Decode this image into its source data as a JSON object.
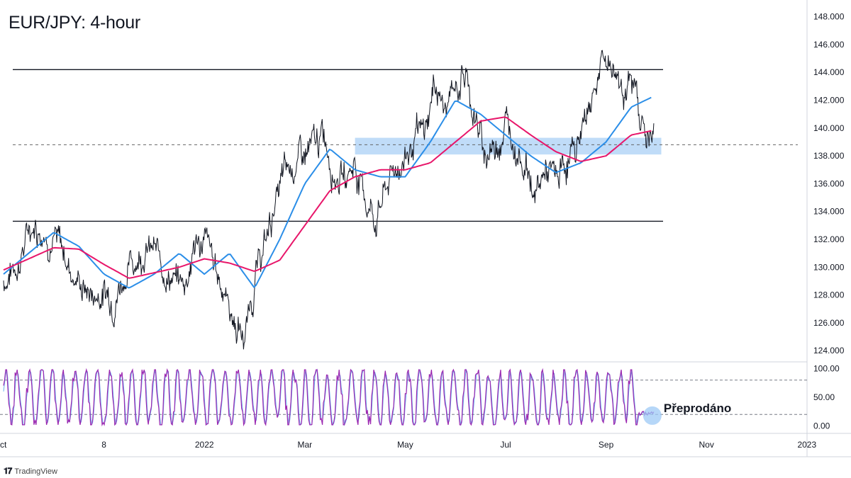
{
  "chart_data": [
    {
      "type": "line",
      "title": "EUR/JPY: 4-hour",
      "subtitle": "",
      "xlabel": "",
      "ylabel": "",
      "ylim": [
        123.5,
        149
      ],
      "y_ticks": [
        "148.000",
        "146.000",
        "144.000",
        "142.000",
        "140.000",
        "138.000",
        "136.000",
        "134.000",
        "132.000",
        "130.000",
        "128.000",
        "126.000",
        "124.000"
      ],
      "x_ticks": [
        "ct",
        "8",
        "2022",
        "Mar",
        "May",
        "Jul",
        "Sep",
        "Nov",
        "2023"
      ],
      "x_range": [
        0,
        16
      ],
      "x_tick_positions": [
        0,
        2,
        4,
        6,
        8,
        10,
        12,
        14,
        16
      ],
      "grid": false,
      "legend": "none",
      "series": [
        {
          "kind": "price",
          "color": "#131722",
          "x": [
            0,
            0.3,
            0.5,
            0.6,
            0.8,
            1.0,
            1.2,
            1.4,
            1.6,
            1.8,
            2.0,
            2.2,
            2.4,
            2.6,
            2.8,
            3.0,
            3.2,
            3.4,
            3.6,
            3.8,
            4.0,
            4.2,
            4.4,
            4.6,
            4.8,
            5.0,
            5.2,
            5.4,
            5.6,
            5.8,
            6.0,
            6.2,
            6.4,
            6.6,
            6.8,
            7.0,
            7.2,
            7.4,
            7.6,
            7.8,
            8.0,
            8.2,
            8.4,
            8.6,
            8.8,
            9.0,
            9.2,
            9.4,
            9.6,
            9.8,
            10.0,
            10.2,
            10.4,
            10.6,
            10.8,
            11.0,
            11.2,
            11.4,
            11.6,
            11.8,
            12.0,
            12.2,
            12.4,
            12.6,
            12.8,
            12.95
          ],
          "values": [
            129.0,
            130.5,
            132.5,
            133.3,
            132.8,
            132.0,
            131.0,
            129.5,
            128.5,
            128.0,
            128.2,
            128.0,
            129.5,
            130.5,
            131.5,
            131.0,
            130.0,
            129.0,
            128.8,
            131.5,
            132.0,
            130.0,
            128.5,
            126.0,
            124.9,
            129.0,
            131.5,
            134.5,
            136.5,
            137.5,
            138.0,
            138.5,
            139.5,
            137.0,
            136.5,
            137.5,
            135.0,
            133.5,
            135.5,
            137.0,
            138.0,
            139.0,
            139.5,
            143.5,
            141.0,
            143.0,
            144.0,
            140.5,
            138.0,
            138.8,
            140.5,
            139.0,
            137.5,
            135.0,
            137.0,
            136.0,
            137.5,
            138.5,
            141.0,
            143.5,
            145.0,
            144.0,
            143.0,
            142.5,
            139.5,
            139.0
          ]
        },
        {
          "kind": "moving-average",
          "color": "#2b8ee8",
          "x": [
            0,
            0.5,
            1.0,
            1.5,
            2.0,
            2.5,
            3.0,
            3.5,
            4.0,
            4.5,
            5.0,
            5.5,
            6.0,
            6.5,
            7.0,
            7.5,
            8.0,
            8.5,
            9.0,
            9.5,
            10.0,
            10.5,
            11.0,
            11.5,
            12.0,
            12.5,
            12.9
          ],
          "values": [
            129.5,
            131.0,
            132.5,
            131.5,
            129.5,
            128.5,
            129.5,
            131.0,
            129.5,
            131.0,
            128.5,
            132.0,
            136.0,
            138.5,
            137.0,
            136.5,
            136.5,
            139.0,
            142.0,
            141.0,
            139.5,
            138.0,
            136.8,
            137.5,
            139.0,
            141.5,
            142.2
          ]
        },
        {
          "kind": "moving-average",
          "color": "#e8166a",
          "x": [
            0,
            0.5,
            1.0,
            1.5,
            2.0,
            2.5,
            3.0,
            3.5,
            4.0,
            4.5,
            5.0,
            5.5,
            6.0,
            6.5,
            7.0,
            7.5,
            8.0,
            8.5,
            9.0,
            9.5,
            10.0,
            10.5,
            11.0,
            11.5,
            12.0,
            12.5,
            12.9
          ],
          "values": [
            129.8,
            130.6,
            131.4,
            131.3,
            130.2,
            129.2,
            129.6,
            130.0,
            130.6,
            130.3,
            129.7,
            130.5,
            133.0,
            135.5,
            136.5,
            137.0,
            137.0,
            137.5,
            139.0,
            140.5,
            140.8,
            139.5,
            138.3,
            137.6,
            138.0,
            139.5,
            139.8
          ]
        }
      ],
      "reference_lines": [
        {
          "kind": "resistance",
          "value": 144.2,
          "color": "#131722",
          "style": "solid"
        },
        {
          "kind": "support",
          "value": 133.3,
          "color": "#131722",
          "style": "solid"
        },
        {
          "kind": "pivot",
          "value": 138.8,
          "color": "#666666",
          "style": "dashed"
        }
      ],
      "zone": {
        "y_from": 138.1,
        "y_to": 139.3,
        "x_from": 7.0,
        "x_to": 13.1,
        "color": "#9ec9f5"
      }
    },
    {
      "type": "line",
      "title": "",
      "ylim": [
        -8,
        108
      ],
      "y_ticks": [
        "100.00",
        "50.00",
        "0.00"
      ],
      "levels": [
        80,
        20
      ],
      "series": [
        {
          "kind": "stochastic",
          "color": "#9c27b0"
        }
      ]
    }
  ],
  "annotation": {
    "label": "Přeprodáno",
    "circle_color": "#9ec9f5"
  },
  "brand": {
    "logo": "𝟏𝟕",
    "name": "TradingView"
  }
}
